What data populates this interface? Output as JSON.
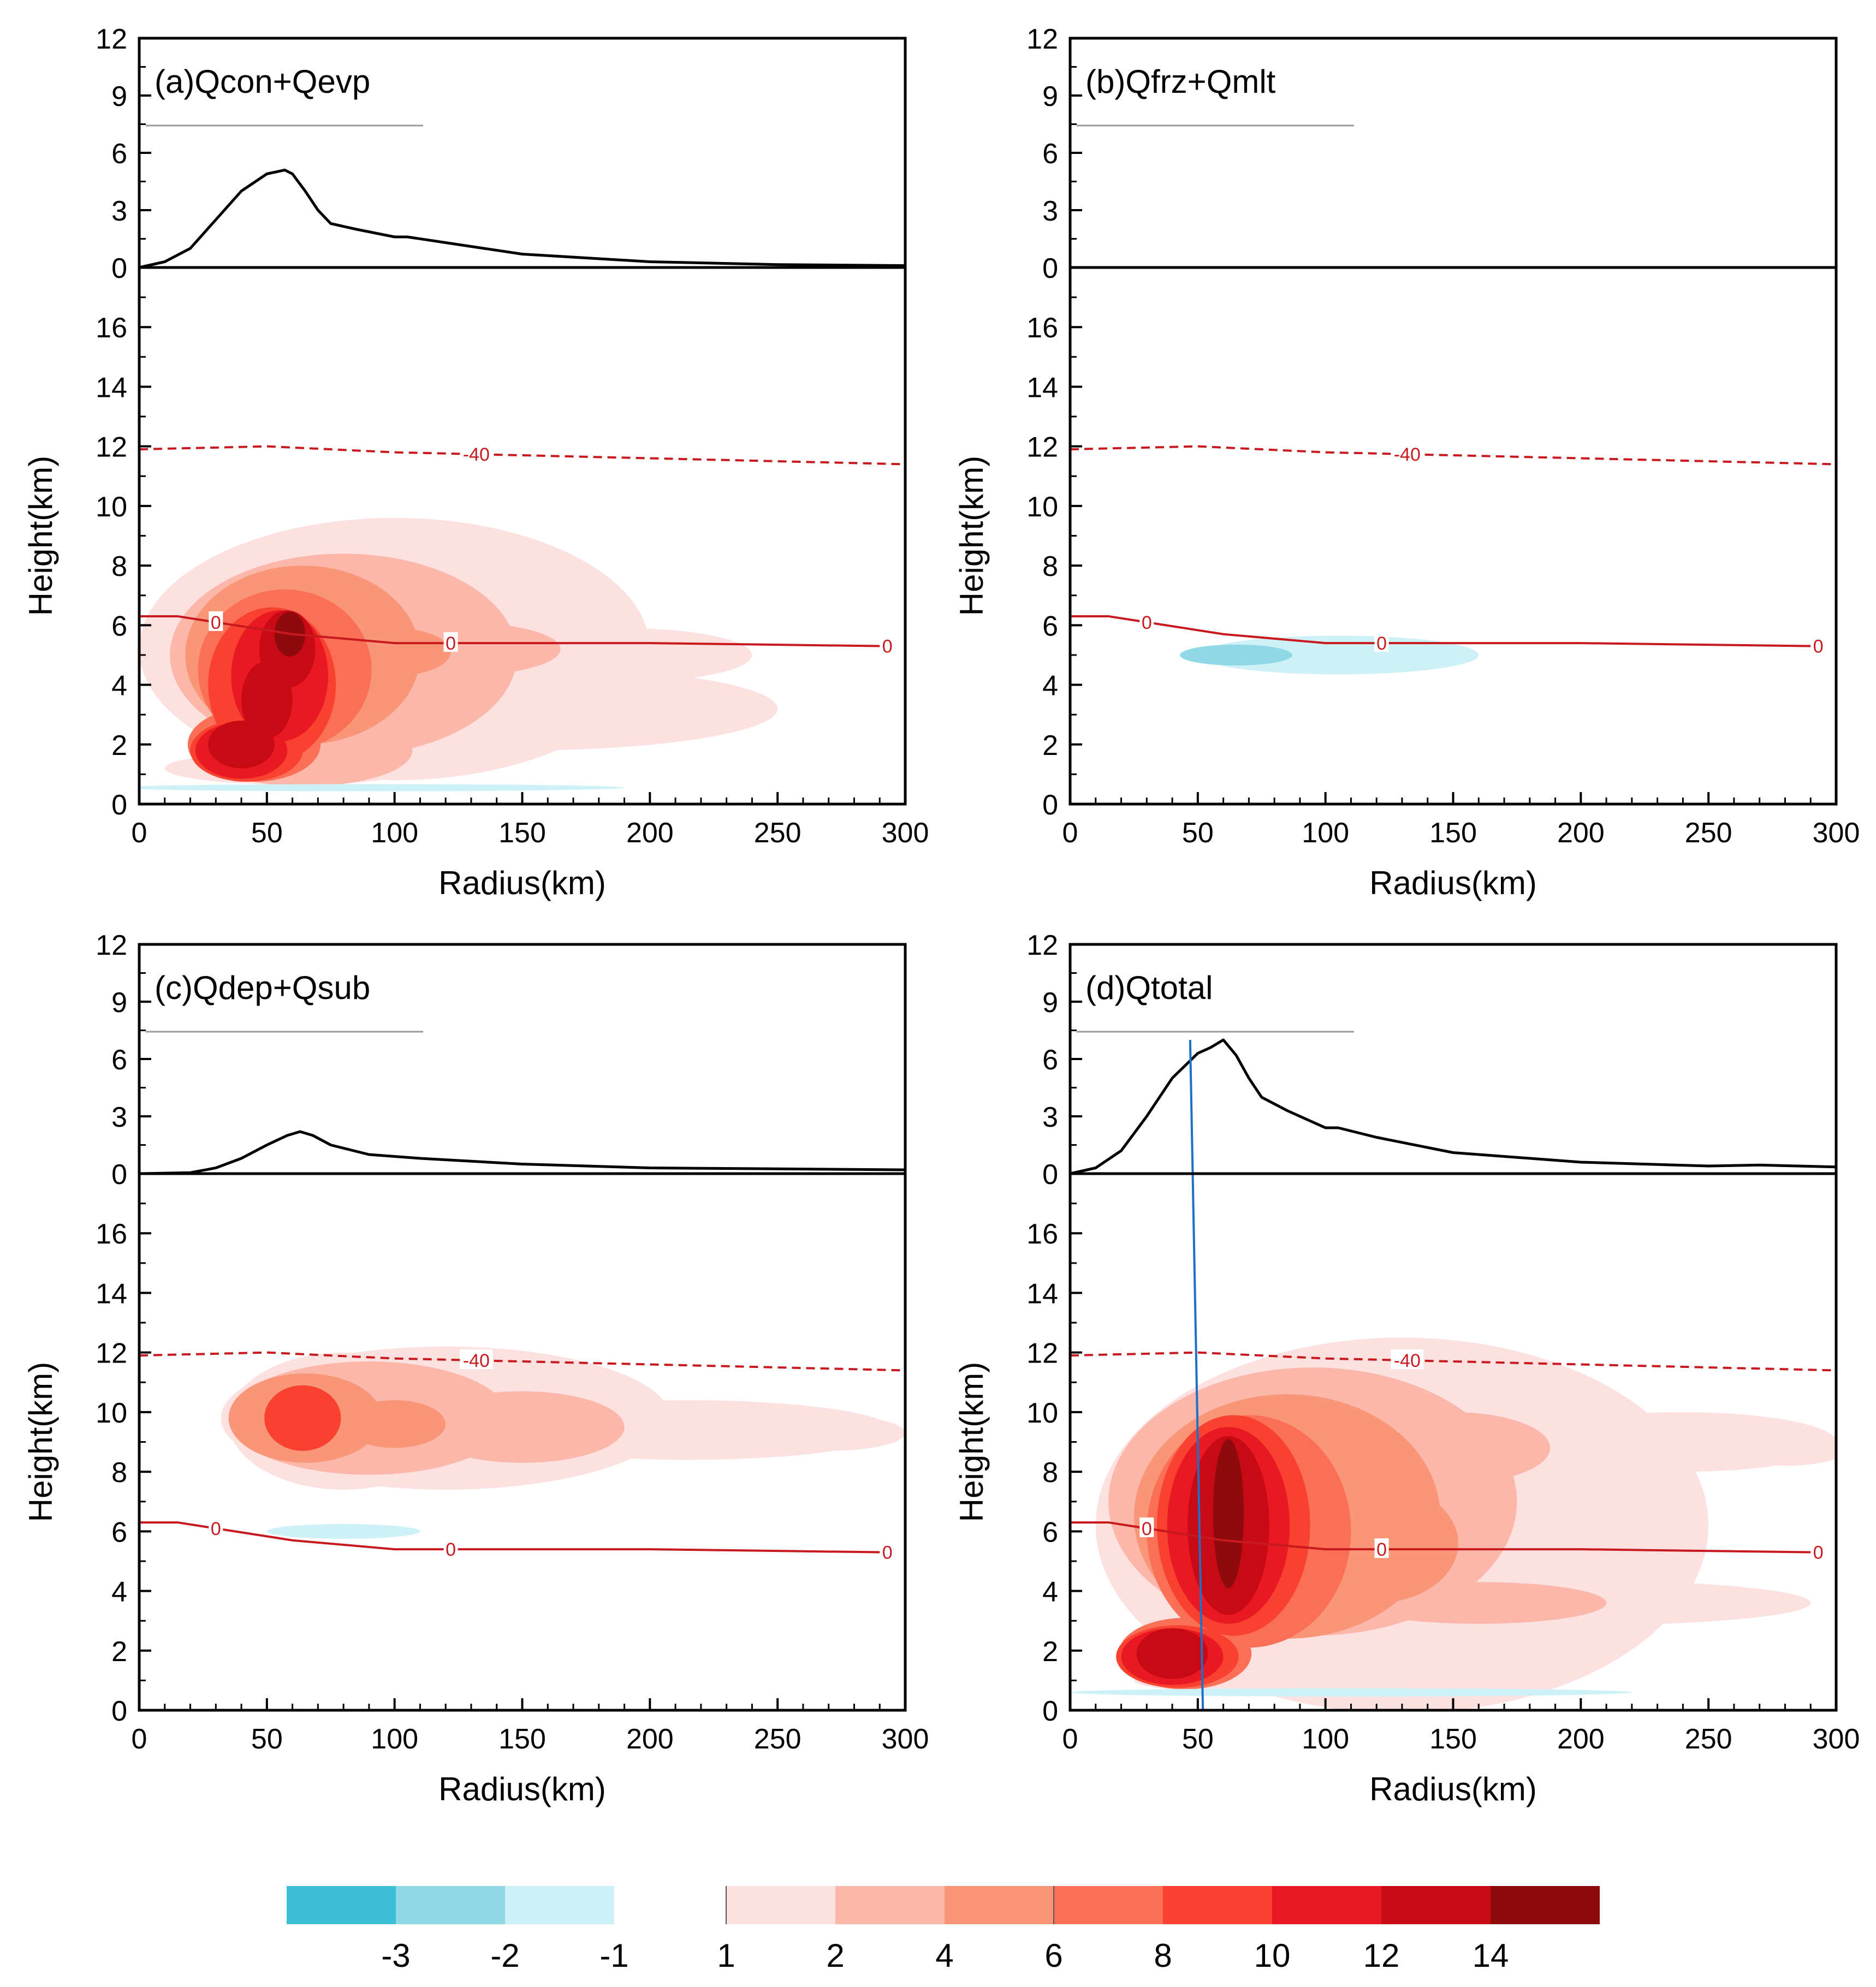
{
  "chart_data": {
    "type": "contour",
    "colorbar": {
      "negative_labels": [
        "-3",
        "-2",
        "-1"
      ],
      "positive_labels": [
        "1",
        "2",
        "4",
        "6",
        "8",
        "10",
        "12",
        "14"
      ],
      "negative_colors": [
        "#3fbfd6",
        "#8fd9e6",
        "#cdf1f7"
      ],
      "positive_colors": [
        "#fde0e0",
        "#fbb8aa",
        "#f99677",
        "#fb6f56",
        "#f8412f",
        "#ea1822",
        "#c70a13",
        "#8e0a0d"
      ]
    },
    "panels": [
      {
        "title": "(a)Qcon+Qevp",
        "xlabel": "Radius(km)",
        "ylabel": "Height(km)",
        "xlim": [
          0,
          300
        ],
        "top_ylim": [
          0,
          12
        ],
        "main_ylim": [
          0,
          18
        ],
        "x_ticks": [
          "0",
          "50",
          "100",
          "150",
          "200",
          "250",
          "300"
        ],
        "top_ticks": [
          "0",
          "3",
          "6",
          "9",
          "12"
        ],
        "main_ticks": [
          "0",
          "2",
          "4",
          "6",
          "8",
          "10",
          "12",
          "14",
          "16"
        ],
        "profile": [
          [
            0,
            0
          ],
          [
            10,
            0.3
          ],
          [
            20,
            1.0
          ],
          [
            30,
            2.5
          ],
          [
            40,
            4.0
          ],
          [
            50,
            4.9
          ],
          [
            57,
            5.1
          ],
          [
            60,
            4.9
          ],
          [
            65,
            4.0
          ],
          [
            70,
            3.0
          ],
          [
            75,
            2.3
          ],
          [
            85,
            2.0
          ],
          [
            100,
            1.6
          ],
          [
            105,
            1.6
          ],
          [
            120,
            1.3
          ],
          [
            150,
            0.7
          ],
          [
            200,
            0.3
          ],
          [
            250,
            0.15
          ],
          [
            300,
            0.1
          ]
        ],
        "isotherm_0": [
          [
            0,
            6.3
          ],
          [
            15,
            6.3
          ],
          [
            30,
            6.1
          ],
          [
            60,
            5.7
          ],
          [
            100,
            5.4
          ],
          [
            150,
            5.4
          ],
          [
            200,
            5.4
          ],
          [
            290,
            5.3
          ]
        ],
        "isotherm_m40": [
          [
            0,
            11.9
          ],
          [
            50,
            12.0
          ],
          [
            100,
            11.8
          ],
          [
            150,
            11.7
          ],
          [
            200,
            11.6
          ],
          [
            300,
            11.4
          ]
        ],
        "isotherm_labels": [
          "0",
          "0",
          "0",
          "-40"
        ],
        "max_heating": 15,
        "max_cooling": -1
      },
      {
        "title": "(b)Qfrz+Qmlt",
        "xlabel": "Radius(km)",
        "ylabel": "Height(km)",
        "xlim": [
          0,
          300
        ],
        "top_ylim": [
          0,
          12
        ],
        "main_ylim": [
          0,
          18
        ],
        "x_ticks": [
          "0",
          "50",
          "100",
          "150",
          "200",
          "250",
          "300"
        ],
        "top_ticks": [
          "0",
          "3",
          "6",
          "9",
          "12"
        ],
        "main_ticks": [
          "0",
          "2",
          "4",
          "6",
          "8",
          "10",
          "12",
          "14",
          "16"
        ],
        "profile": [
          [
            0,
            0
          ],
          [
            300,
            0
          ]
        ],
        "isotherm_0": [
          [
            0,
            6.3
          ],
          [
            15,
            6.3
          ],
          [
            30,
            6.1
          ],
          [
            60,
            5.7
          ],
          [
            100,
            5.4
          ],
          [
            150,
            5.4
          ],
          [
            200,
            5.4
          ],
          [
            290,
            5.3
          ]
        ],
        "isotherm_m40": [
          [
            0,
            11.9
          ],
          [
            50,
            12.0
          ],
          [
            100,
            11.8
          ],
          [
            150,
            11.7
          ],
          [
            200,
            11.6
          ],
          [
            300,
            11.4
          ]
        ],
        "isotherm_labels": [
          "0",
          "0",
          "0",
          "-40"
        ],
        "max_heating": 0,
        "max_cooling": -2
      },
      {
        "title": "(c)Qdep+Qsub",
        "xlabel": "Radius(km)",
        "ylabel": "Height(km)",
        "xlim": [
          0,
          300
        ],
        "top_ylim": [
          0,
          12
        ],
        "main_ylim": [
          0,
          18
        ],
        "x_ticks": [
          "0",
          "50",
          "100",
          "150",
          "200",
          "250",
          "300"
        ],
        "top_ticks": [
          "0",
          "3",
          "6",
          "9",
          "12"
        ],
        "main_ticks": [
          "0",
          "2",
          "4",
          "6",
          "8",
          "10",
          "12",
          "14",
          "16"
        ],
        "profile": [
          [
            0,
            0
          ],
          [
            20,
            0.05
          ],
          [
            30,
            0.3
          ],
          [
            40,
            0.8
          ],
          [
            50,
            1.5
          ],
          [
            58,
            2.0
          ],
          [
            63,
            2.2
          ],
          [
            68,
            2.0
          ],
          [
            75,
            1.5
          ],
          [
            90,
            1.0
          ],
          [
            110,
            0.8
          ],
          [
            150,
            0.5
          ],
          [
            200,
            0.3
          ],
          [
            300,
            0.2
          ]
        ],
        "isotherm_0": [
          [
            0,
            6.3
          ],
          [
            15,
            6.3
          ],
          [
            30,
            6.1
          ],
          [
            60,
            5.7
          ],
          [
            100,
            5.4
          ],
          [
            150,
            5.4
          ],
          [
            200,
            5.4
          ],
          [
            290,
            5.3
          ]
        ],
        "isotherm_m40": [
          [
            0,
            11.9
          ],
          [
            50,
            12.0
          ],
          [
            100,
            11.8
          ],
          [
            150,
            11.7
          ],
          [
            200,
            11.6
          ],
          [
            300,
            11.4
          ]
        ],
        "isotherm_labels": [
          "0",
          "0",
          "0",
          "-40"
        ],
        "max_heating": 9,
        "max_cooling": -1
      },
      {
        "title": "(d)Qtotal",
        "xlabel": "Radius(km)",
        "ylabel": "Height(km)",
        "xlim": [
          0,
          300
        ],
        "top_ylim": [
          0,
          12
        ],
        "main_ylim": [
          0,
          18
        ],
        "x_ticks": [
          "0",
          "50",
          "100",
          "150",
          "200",
          "250",
          "300"
        ],
        "top_ticks": [
          "0",
          "3",
          "6",
          "9",
          "12"
        ],
        "main_ticks": [
          "0",
          "2",
          "4",
          "6",
          "8",
          "10",
          "12",
          "14",
          "16"
        ],
        "profile": [
          [
            0,
            0
          ],
          [
            10,
            0.3
          ],
          [
            20,
            1.2
          ],
          [
            30,
            3.0
          ],
          [
            40,
            5.0
          ],
          [
            50,
            6.3
          ],
          [
            55,
            6.6
          ],
          [
            60,
            7.0
          ],
          [
            65,
            6.2
          ],
          [
            70,
            5.0
          ],
          [
            75,
            4.0
          ],
          [
            85,
            3.3
          ],
          [
            100,
            2.4
          ],
          [
            105,
            2.4
          ],
          [
            120,
            1.9
          ],
          [
            150,
            1.1
          ],
          [
            200,
            0.6
          ],
          [
            250,
            0.4
          ],
          [
            270,
            0.45
          ],
          [
            300,
            0.35
          ]
        ],
        "isotherm_0": [
          [
            0,
            6.3
          ],
          [
            15,
            6.3
          ],
          [
            30,
            6.1
          ],
          [
            60,
            5.7
          ],
          [
            100,
            5.4
          ],
          [
            150,
            5.4
          ],
          [
            200,
            5.4
          ],
          [
            290,
            5.3
          ]
        ],
        "isotherm_m40": [
          [
            0,
            11.9
          ],
          [
            50,
            12.0
          ],
          [
            100,
            11.8
          ],
          [
            150,
            11.7
          ],
          [
            200,
            11.6
          ],
          [
            300,
            11.4
          ]
        ],
        "isotherm_labels": [
          "0",
          "0",
          "0",
          "-40"
        ],
        "max_heating": 15,
        "max_cooling": -1,
        "rmw_line": {
          "x_top_km": 47,
          "top_value": 7,
          "x_bottom_km": 52,
          "bottom_height_km": 0
        }
      }
    ]
  }
}
